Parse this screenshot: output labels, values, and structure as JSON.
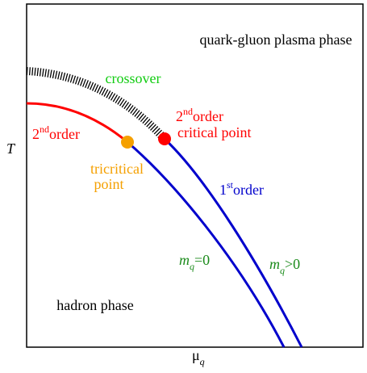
{
  "axes": {
    "y": "T",
    "x": {
      "symbol": "μ",
      "subscript": "q"
    }
  },
  "regions": {
    "top": "quark-gluon plasma phase",
    "bottom": "hadron phase"
  },
  "labels": {
    "crossover": "crossover",
    "second_order_left": {
      "number": "2",
      "sup": "nd",
      "text": "order"
    },
    "second_order_right": {
      "number": "2",
      "sup": "nd",
      "text": "order"
    },
    "critical_point": "critical point",
    "tricritical": [
      "tricritical",
      "point"
    ],
    "first_order": {
      "number": "1",
      "sup": "st",
      "text": "order"
    },
    "m_zero": {
      "symbol": "m",
      "subscript": "q",
      "rel": "=0"
    },
    "m_positive": {
      "symbol": "m",
      "subscript": "q",
      "rel": ">0"
    }
  }
}
